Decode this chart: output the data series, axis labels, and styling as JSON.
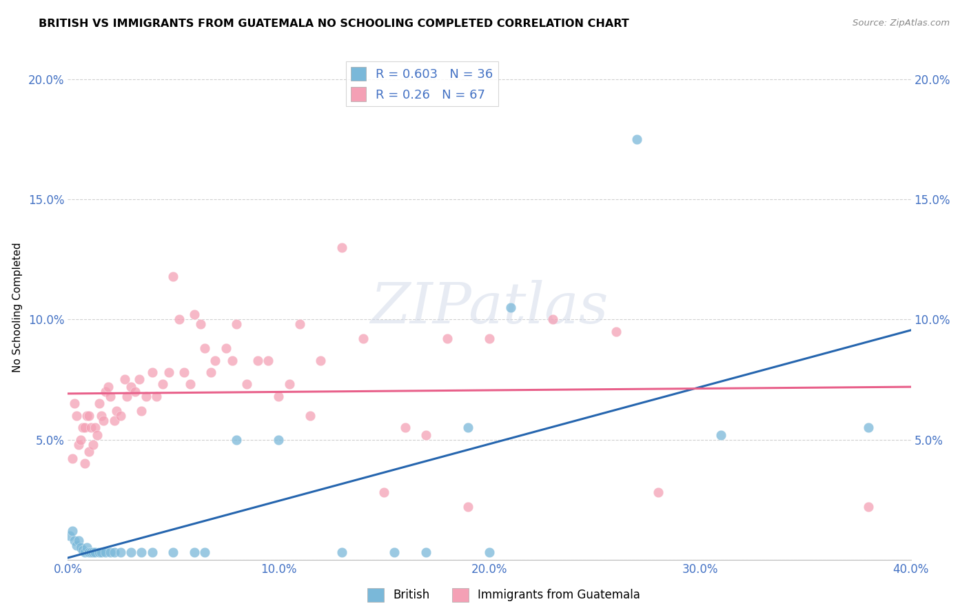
{
  "title": "BRITISH VS IMMIGRANTS FROM GUATEMALA NO SCHOOLING COMPLETED CORRELATION CHART",
  "source": "Source: ZipAtlas.com",
  "ylabel": "No Schooling Completed",
  "xlim": [
    0.0,
    0.4
  ],
  "ylim": [
    0.0,
    0.21
  ],
  "xticks": [
    0.0,
    0.1,
    0.2,
    0.3,
    0.4
  ],
  "yticks": [
    0.0,
    0.05,
    0.1,
    0.15,
    0.2
  ],
  "xtick_labels": [
    "0.0%",
    "10.0%",
    "20.0%",
    "30.0%",
    "40.0%"
  ],
  "ytick_labels": [
    "",
    "5.0%",
    "10.0%",
    "15.0%",
    "20.0%"
  ],
  "british_color": "#7ab8d9",
  "guatemala_color": "#f4a0b5",
  "british_line_color": "#2565ae",
  "guatemala_line_color": "#e8608a",
  "tick_color": "#4472c4",
  "R_british": 0.603,
  "N_british": 36,
  "R_guatemala": 0.26,
  "N_guatemala": 67,
  "british_points": [
    [
      0.001,
      0.01
    ],
    [
      0.002,
      0.012
    ],
    [
      0.003,
      0.008
    ],
    [
      0.004,
      0.006
    ],
    [
      0.005,
      0.008
    ],
    [
      0.006,
      0.005
    ],
    [
      0.007,
      0.004
    ],
    [
      0.008,
      0.003
    ],
    [
      0.009,
      0.005
    ],
    [
      0.01,
      0.003
    ],
    [
      0.011,
      0.003
    ],
    [
      0.012,
      0.003
    ],
    [
      0.013,
      0.003
    ],
    [
      0.015,
      0.003
    ],
    [
      0.016,
      0.003
    ],
    [
      0.018,
      0.003
    ],
    [
      0.02,
      0.003
    ],
    [
      0.022,
      0.003
    ],
    [
      0.025,
      0.003
    ],
    [
      0.03,
      0.003
    ],
    [
      0.035,
      0.003
    ],
    [
      0.04,
      0.003
    ],
    [
      0.05,
      0.003
    ],
    [
      0.06,
      0.003
    ],
    [
      0.065,
      0.003
    ],
    [
      0.08,
      0.05
    ],
    [
      0.1,
      0.05
    ],
    [
      0.13,
      0.003
    ],
    [
      0.155,
      0.003
    ],
    [
      0.17,
      0.003
    ],
    [
      0.19,
      0.055
    ],
    [
      0.2,
      0.003
    ],
    [
      0.21,
      0.105
    ],
    [
      0.27,
      0.175
    ],
    [
      0.31,
      0.052
    ],
    [
      0.38,
      0.055
    ]
  ],
  "guatemala_points": [
    [
      0.002,
      0.042
    ],
    [
      0.003,
      0.065
    ],
    [
      0.004,
      0.06
    ],
    [
      0.005,
      0.048
    ],
    [
      0.006,
      0.05
    ],
    [
      0.007,
      0.055
    ],
    [
      0.008,
      0.055
    ],
    [
      0.008,
      0.04
    ],
    [
      0.009,
      0.06
    ],
    [
      0.01,
      0.06
    ],
    [
      0.01,
      0.045
    ],
    [
      0.011,
      0.055
    ],
    [
      0.012,
      0.048
    ],
    [
      0.013,
      0.055
    ],
    [
      0.014,
      0.052
    ],
    [
      0.015,
      0.065
    ],
    [
      0.016,
      0.06
    ],
    [
      0.017,
      0.058
    ],
    [
      0.018,
      0.07
    ],
    [
      0.019,
      0.072
    ],
    [
      0.02,
      0.068
    ],
    [
      0.022,
      0.058
    ],
    [
      0.023,
      0.062
    ],
    [
      0.025,
      0.06
    ],
    [
      0.027,
      0.075
    ],
    [
      0.028,
      0.068
    ],
    [
      0.03,
      0.072
    ],
    [
      0.032,
      0.07
    ],
    [
      0.034,
      0.075
    ],
    [
      0.035,
      0.062
    ],
    [
      0.037,
      0.068
    ],
    [
      0.04,
      0.078
    ],
    [
      0.042,
      0.068
    ],
    [
      0.045,
      0.073
    ],
    [
      0.048,
      0.078
    ],
    [
      0.05,
      0.118
    ],
    [
      0.053,
      0.1
    ],
    [
      0.055,
      0.078
    ],
    [
      0.058,
      0.073
    ],
    [
      0.06,
      0.102
    ],
    [
      0.063,
      0.098
    ],
    [
      0.065,
      0.088
    ],
    [
      0.068,
      0.078
    ],
    [
      0.07,
      0.083
    ],
    [
      0.075,
      0.088
    ],
    [
      0.078,
      0.083
    ],
    [
      0.08,
      0.098
    ],
    [
      0.085,
      0.073
    ],
    [
      0.09,
      0.083
    ],
    [
      0.095,
      0.083
    ],
    [
      0.1,
      0.068
    ],
    [
      0.105,
      0.073
    ],
    [
      0.11,
      0.098
    ],
    [
      0.115,
      0.06
    ],
    [
      0.12,
      0.083
    ],
    [
      0.13,
      0.13
    ],
    [
      0.14,
      0.092
    ],
    [
      0.15,
      0.028
    ],
    [
      0.16,
      0.055
    ],
    [
      0.17,
      0.052
    ],
    [
      0.18,
      0.092
    ],
    [
      0.19,
      0.022
    ],
    [
      0.2,
      0.092
    ],
    [
      0.23,
      0.1
    ],
    [
      0.26,
      0.095
    ],
    [
      0.28,
      0.028
    ],
    [
      0.38,
      0.022
    ]
  ],
  "watermark_text": "ZIPatlas",
  "background_color": "#ffffff",
  "grid_color": "#d0d0d0"
}
